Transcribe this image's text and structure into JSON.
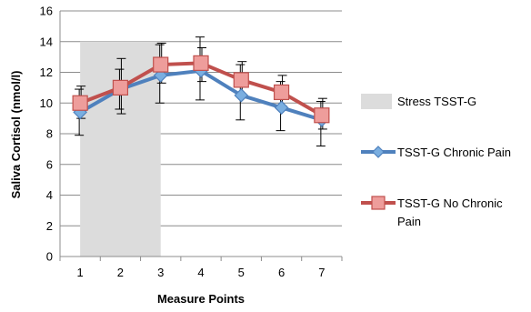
{
  "chart_data": {
    "type": "line",
    "title": "",
    "xlabel": "Measure Points",
    "ylabel": "Saliva Cortisol (nmol/l)",
    "ylim": [
      0,
      16
    ],
    "y_ticks": [
      0,
      2,
      4,
      6,
      8,
      10,
      12,
      14,
      16
    ],
    "categories": [
      "1",
      "2",
      "3",
      "4",
      "5",
      "6",
      "7"
    ],
    "grid": "horizontal",
    "legend_position": "right",
    "shaded_region": {
      "name": "Stress TSST-G",
      "x_from": "1",
      "x_to": "3",
      "y_from": 0,
      "y_to": 14,
      "color": "#dcdcdc"
    },
    "series": [
      {
        "name": "TSST-G Chronic Pain",
        "color": "#4f81bd",
        "marker": "diamond",
        "values": [
          9.4,
          10.9,
          11.8,
          12.1,
          10.5,
          9.7,
          8.9
        ],
        "error_upper": [
          10.9,
          12.2,
          13.8,
          14.3,
          12.5,
          11.4,
          10.1
        ],
        "error_lower": [
          7.9,
          9.6,
          10.0,
          10.2,
          8.9,
          8.2,
          7.2
        ]
      },
      {
        "name": "TSST-G No Chronic Pain",
        "legend_lines": [
          "TSST-G No Chronic",
          "Pain"
        ],
        "color": "#c0504d",
        "marker": "square",
        "values": [
          10.0,
          11.0,
          12.5,
          12.6,
          11.5,
          10.7,
          9.2
        ],
        "error_upper": [
          11.1,
          12.9,
          13.9,
          13.6,
          12.7,
          11.8,
          10.3
        ],
        "error_lower": [
          9.0,
          9.3,
          11.3,
          11.4,
          10.5,
          9.8,
          8.3
        ]
      }
    ]
  }
}
